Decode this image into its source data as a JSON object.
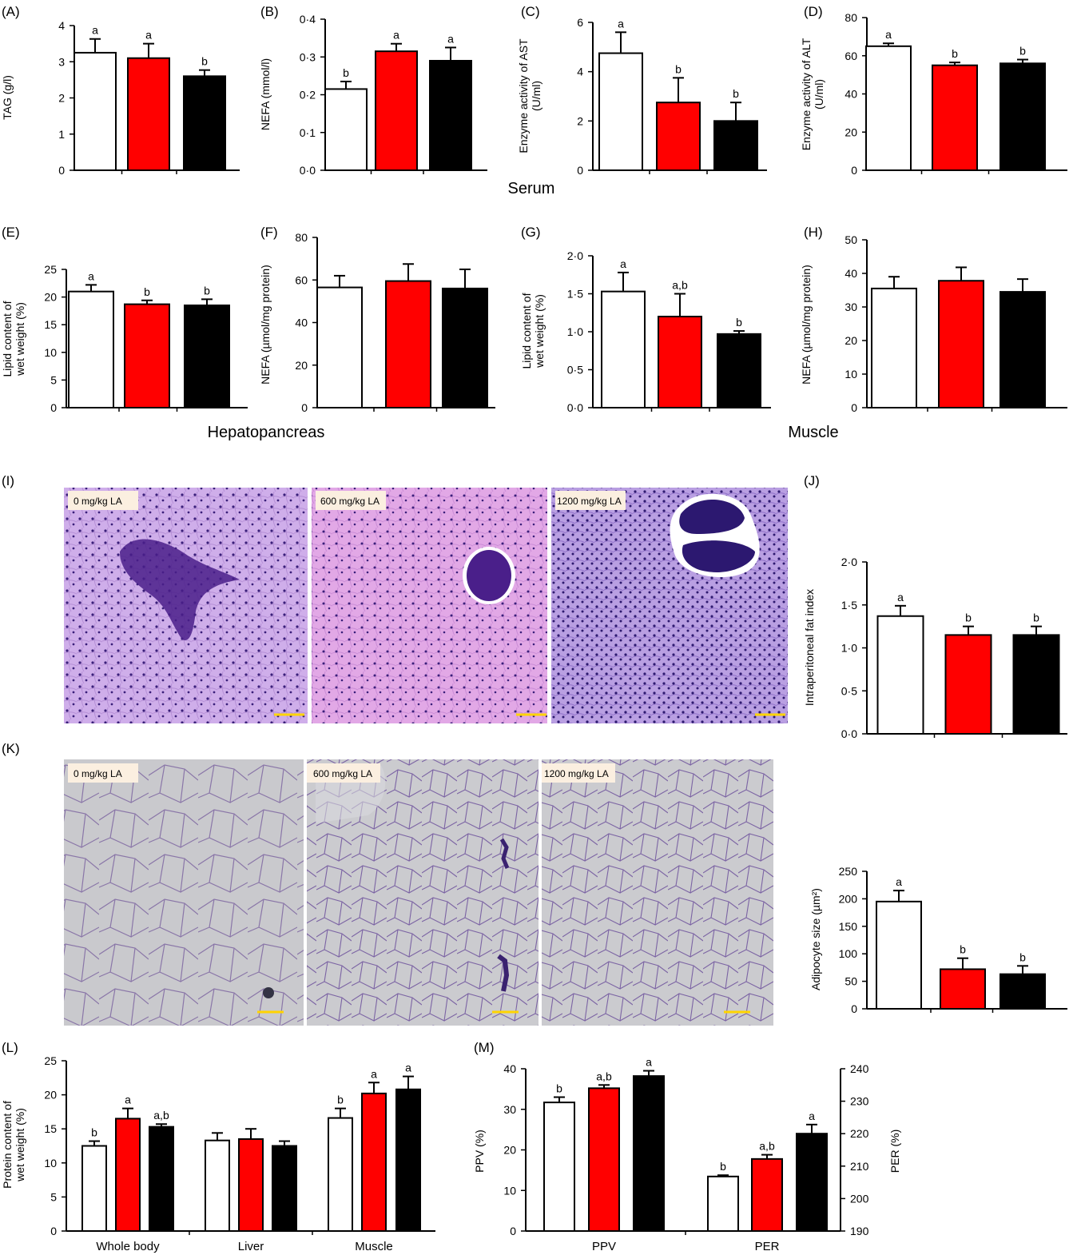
{
  "colors": {
    "control": "#ffffff",
    "la600": "#ff0000",
    "la1200": "#000000",
    "axis": "#000000",
    "error_bar": "#000000",
    "he_background": "#c9a6e6",
    "he_dark": "#4a1f8a",
    "adipose_background": "#c8c8cc",
    "adipose_membrane": "#7a5aa0",
    "label_box": "#fbefe0",
    "scale_bar": "#ffd400"
  },
  "section_labels": {
    "serum": "Serum",
    "hepatopancreas": "Hepatopancreas",
    "muscle": "Muscle"
  },
  "micrographs": {
    "I": {
      "panel_label": "(I)",
      "images": [
        {
          "label": "0 mg/kg LA"
        },
        {
          "label": "600 mg/kg LA"
        },
        {
          "label": "1200 mg/kg LA"
        }
      ],
      "stain": "H&E hepatopancreas"
    },
    "K": {
      "panel_label": "(K)",
      "images": [
        {
          "label": "0 mg/kg LA"
        },
        {
          "label": "600 mg/kg LA"
        },
        {
          "label": "1200 mg/kg LA"
        }
      ],
      "stain": "H&E adipose"
    }
  },
  "chart_data": [
    {
      "id": "A",
      "panel_label": "(A)",
      "type": "bar",
      "ylabel": [
        "TAG (g/l)"
      ],
      "ylim": [
        0,
        4
      ],
      "yticks": [
        "0",
        "1",
        "2",
        "3",
        "4"
      ],
      "grid": false,
      "categories": [
        "",
        "",
        ""
      ],
      "values": [
        3.25,
        3.1,
        2.6
      ],
      "errors": [
        0.38,
        0.4,
        0.17
      ],
      "letters": [
        "a",
        "a",
        "b"
      ]
    },
    {
      "id": "B",
      "panel_label": "(B)",
      "type": "bar",
      "ylabel": [
        "NEFA (mmol/l)"
      ],
      "ylim": [
        0,
        0.4
      ],
      "yticks": [
        "0·0",
        "0·1",
        "0·2",
        "0·3",
        "0·4"
      ],
      "grid": false,
      "categories": [
        "",
        "",
        ""
      ],
      "values": [
        0.215,
        0.315,
        0.29
      ],
      "errors": [
        0.02,
        0.02,
        0.035
      ],
      "letters": [
        "b",
        "a",
        "a"
      ]
    },
    {
      "id": "C",
      "panel_label": "(C)",
      "type": "bar",
      "ylabel": [
        "Enzyme activity of AST",
        "(U/ml)"
      ],
      "ylim": [
        0,
        6
      ],
      "yticks": [
        "0",
        "2",
        "4",
        "6"
      ],
      "grid": false,
      "categories": [
        "",
        "",
        ""
      ],
      "values": [
        4.75,
        2.75,
        2.0
      ],
      "errors": [
        0.85,
        1.0,
        0.75
      ],
      "letters": [
        "a",
        "b",
        "b"
      ]
    },
    {
      "id": "D",
      "panel_label": "(D)",
      "type": "bar",
      "ylabel": [
        "Enzyme activity of ALT",
        "(U/ml)"
      ],
      "ylim": [
        0,
        80
      ],
      "yticks": [
        "0",
        "20",
        "40",
        "60",
        "80"
      ],
      "grid": false,
      "categories": [
        "",
        "",
        ""
      ],
      "values": [
        65,
        55,
        56
      ],
      "errors": [
        1.5,
        1.5,
        2.0
      ],
      "letters": [
        "a",
        "b",
        "b"
      ]
    },
    {
      "id": "E",
      "panel_label": "(E)",
      "type": "bar",
      "ylabel": [
        "Lipid content of",
        "wet weight (%)"
      ],
      "ylim": [
        0,
        25
      ],
      "yticks": [
        "0",
        "5",
        "10",
        "15",
        "20",
        "25"
      ],
      "grid": false,
      "categories": [
        "",
        "",
        ""
      ],
      "values": [
        21,
        18.7,
        18.5
      ],
      "errors": [
        1.2,
        0.7,
        1.1
      ],
      "letters": [
        "a",
        "b",
        "b"
      ]
    },
    {
      "id": "F",
      "panel_label": "(F)",
      "type": "bar",
      "ylabel": [
        "NEFA (µmol/mg protein)"
      ],
      "ylim": [
        0,
        80
      ],
      "yticks": [
        "0",
        "20",
        "40",
        "60",
        "80"
      ],
      "grid": false,
      "categories": [
        "",
        "",
        ""
      ],
      "values": [
        56.5,
        59.5,
        56
      ],
      "errors": [
        5.5,
        8,
        9
      ],
      "letters": [
        "",
        "",
        ""
      ]
    },
    {
      "id": "G",
      "panel_label": "(G)",
      "type": "bar",
      "ylabel": [
        "Lipid content of",
        "wet weight (%)"
      ],
      "ylim": [
        0,
        2
      ],
      "yticks": [
        "0·0",
        "0·5",
        "1·0",
        "1·5",
        "2·0"
      ],
      "grid": false,
      "categories": [
        "",
        "",
        ""
      ],
      "values": [
        1.53,
        1.2,
        0.97
      ],
      "errors": [
        0.25,
        0.3,
        0.04
      ],
      "letters": [
        "a",
        "a,b",
        "b"
      ]
    },
    {
      "id": "H",
      "panel_label": "(H)",
      "type": "bar",
      "ylabel": [
        "NEFA (µmol/mg protein)"
      ],
      "ylim": [
        0,
        50
      ],
      "yticks": [
        "0",
        "10",
        "20",
        "30",
        "40",
        "50"
      ],
      "grid": false,
      "categories": [
        "",
        "",
        ""
      ],
      "values": [
        35.5,
        37.8,
        34.5
      ],
      "errors": [
        3.5,
        4,
        3.8
      ],
      "letters": [
        "",
        "",
        ""
      ]
    },
    {
      "id": "J",
      "panel_label": "(J)",
      "type": "bar",
      "ylabel": [
        "Intraperitoneal fat index"
      ],
      "ylim": [
        0,
        2
      ],
      "yticks": [
        "0·0",
        "0·5",
        "1·0",
        "1·5",
        "2·0"
      ],
      "grid": false,
      "categories": [
        "",
        "",
        ""
      ],
      "values": [
        1.37,
        1.15,
        1.15
      ],
      "errors": [
        0.12,
        0.1,
        0.1
      ],
      "letters": [
        "a",
        "b",
        "b"
      ]
    },
    {
      "id": "K",
      "panel_label": "",
      "type": "bar",
      "ylabel": [
        "Adipocyte size (µm²)"
      ],
      "ylim": [
        0,
        250
      ],
      "yticks": [
        "0",
        "50",
        "100",
        "150",
        "200",
        "250"
      ],
      "grid": false,
      "categories": [
        "",
        "",
        ""
      ],
      "values": [
        195,
        72,
        63
      ],
      "errors": [
        20,
        20,
        15
      ],
      "letters": [
        "a",
        "b",
        "b"
      ]
    },
    {
      "id": "L",
      "panel_label": "(L)",
      "type": "bar",
      "ylabel": [
        "Protein content of",
        "wet weight (%)"
      ],
      "ylim": [
        0,
        25
      ],
      "yticks": [
        "0",
        "5",
        "10",
        "15",
        "20",
        "25"
      ],
      "grid": false,
      "categories": [
        "Whole body",
        "Liver",
        "Muscle"
      ],
      "series": [
        {
          "values": [
            12.5,
            13.3,
            16.6
          ],
          "errors": [
            0.7,
            1.1,
            1.4
          ],
          "letters": [
            "b",
            "",
            "b"
          ]
        },
        {
          "values": [
            16.5,
            13.5,
            20.2
          ],
          "errors": [
            1.5,
            1.5,
            1.6
          ],
          "letters": [
            "a",
            "",
            "a"
          ]
        },
        {
          "values": [
            15.3,
            12.5,
            20.8
          ],
          "errors": [
            0.4,
            0.7,
            1.9
          ],
          "letters": [
            "a,b",
            "",
            "a"
          ]
        }
      ]
    },
    {
      "id": "M",
      "panel_label": "(M)",
      "type": "bar",
      "ylabel": [
        "PPV (%)"
      ],
      "y2label": [
        "PER (%)"
      ],
      "ylim": [
        0,
        40
      ],
      "yticks": [
        "0",
        "10",
        "20",
        "30",
        "40"
      ],
      "y2lim": [
        190,
        240
      ],
      "y2ticks": [
        "190",
        "200",
        "210",
        "220",
        "230",
        "240"
      ],
      "grid": false,
      "categories": [
        "PPV",
        "PER"
      ],
      "series": [
        {
          "values": [
            31.7,
            206.8
          ],
          "errors": [
            1.3,
            0.4
          ],
          "letters": [
            "b",
            "b"
          ]
        },
        {
          "values": [
            35.2,
            212.2
          ],
          "errors": [
            0.8,
            1.3
          ],
          "letters": [
            "a,b",
            "a,b"
          ]
        },
        {
          "values": [
            38.2,
            220.0
          ],
          "errors": [
            1.3,
            2.8
          ],
          "letters": [
            "a",
            "a"
          ]
        }
      ]
    }
  ]
}
